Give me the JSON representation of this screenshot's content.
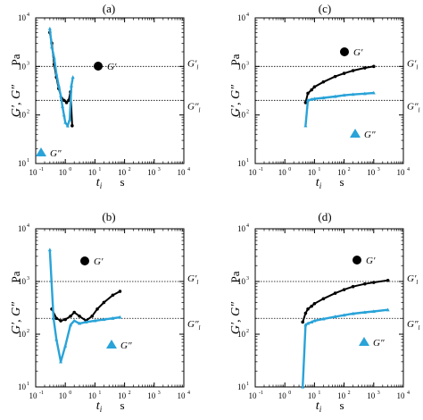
{
  "colors": {
    "g_prime": "#000000",
    "g_double_prime": "#29a3d8",
    "ref_line": "#000000",
    "axis": "#000000"
  },
  "chart_data": [
    {
      "panel": "(a)",
      "type": "scatter",
      "xscale": "log",
      "yscale": "log",
      "xlim": [
        0.1,
        10000
      ],
      "ylim": [
        10,
        10000
      ],
      "xticks": [
        "10",
        "10",
        "10",
        "10",
        "10",
        "10"
      ],
      "xtick_exponents": [
        "-1",
        "0",
        "1",
        "2",
        "3",
        "4"
      ],
      "yticks": [
        "10",
        "10",
        "10",
        "10"
      ],
      "ytick_exponents": [
        "1",
        "2",
        "3",
        "4"
      ],
      "xlabel": "t",
      "xlabel_sub": "i",
      "xunit": "s",
      "ylabel": "G′, G″",
      "yunit": "Pa",
      "ref_lines": [
        {
          "label": "G′",
          "label_sub": "l",
          "y": 1000
        },
        {
          "label": "G″",
          "label_sub": "l",
          "y": 200
        }
      ],
      "series": [
        {
          "name": "G′",
          "marker": "circle",
          "x": [
            0.3,
            0.35,
            0.42,
            0.5,
            0.6,
            0.75,
            0.9,
            1.1,
            1.3,
            1.5,
            1.7
          ],
          "y": [
            5000,
            3000,
            1100,
            600,
            350,
            220,
            200,
            180,
            200,
            300,
            60
          ]
        },
        {
          "name": "G″",
          "marker": "triangle",
          "x": [
            0.3,
            0.35,
            0.42,
            0.5,
            0.6,
            0.7,
            0.8,
            0.9,
            1.0,
            1.2,
            1.4,
            1.6,
            1.8
          ],
          "y": [
            6000,
            2500,
            1500,
            700,
            400,
            250,
            150,
            100,
            70,
            60,
            80,
            400,
            600
          ]
        }
      ]
    },
    {
      "panel": "(b)",
      "type": "line",
      "xscale": "log",
      "yscale": "log",
      "xlim": [
        0.1,
        10000
      ],
      "ylim": [
        10,
        10000
      ],
      "xticks": [
        "10",
        "10",
        "10",
        "10",
        "10",
        "10"
      ],
      "xtick_exponents": [
        "-1",
        "0",
        "1",
        "2",
        "3",
        "4"
      ],
      "yticks": [
        "10",
        "10",
        "10",
        "10"
      ],
      "ytick_exponents": [
        "1",
        "2",
        "3",
        "4"
      ],
      "xlabel": "t",
      "xlabel_sub": "i",
      "xunit": "s",
      "ylabel": "G′, G″",
      "yunit": "Pa",
      "ref_lines": [
        {
          "label": "G′",
          "label_sub": "l",
          "y": 1000
        },
        {
          "label": "G″",
          "label_sub": "l",
          "y": 200
        }
      ],
      "series": [
        {
          "name": "G′",
          "marker": "circle",
          "x": [
            0.35,
            0.5,
            0.7,
            1.0,
            1.5,
            2.0,
            3.0,
            5.0,
            8.0,
            12,
            20,
            40,
            70
          ],
          "y": [
            300,
            200,
            180,
            190,
            220,
            260,
            220,
            180,
            220,
            300,
            400,
            550,
            650
          ]
        },
        {
          "name": "G″",
          "marker": "triangle",
          "x": [
            0.3,
            0.4,
            0.5,
            0.7,
            1.0,
            1.5,
            2.0,
            3.0,
            5.0,
            10,
            20,
            40,
            70
          ],
          "y": [
            4000,
            200,
            80,
            30,
            60,
            150,
            180,
            160,
            170,
            180,
            190,
            200,
            210
          ]
        }
      ]
    },
    {
      "panel": "(c)",
      "type": "line",
      "xscale": "log",
      "yscale": "log",
      "xlim": [
        0.1,
        10000
      ],
      "ylim": [
        10,
        10000
      ],
      "xticks": [
        "10",
        "10",
        "10",
        "10",
        "10",
        "10"
      ],
      "xtick_exponents": [
        "-1",
        "0",
        "1",
        "2",
        "3",
        "4"
      ],
      "yticks": [
        "10",
        "10",
        "10",
        "10"
      ],
      "ytick_exponents": [
        "1",
        "2",
        "3",
        "4"
      ],
      "xlabel": "t",
      "xlabel_sub": "i",
      "xunit": "s",
      "ylabel": "G′, G″",
      "yunit": "Pa",
      "ref_lines": [
        {
          "label": "G′",
          "label_sub": "l",
          "y": 1000
        },
        {
          "label": "G″",
          "label_sub": "l",
          "y": 200
        }
      ],
      "series": [
        {
          "name": "G′",
          "marker": "circle",
          "x": [
            5,
            6,
            8,
            10,
            20,
            50,
            100,
            200,
            500,
            1000
          ],
          "y": [
            180,
            280,
            330,
            380,
            480,
            620,
            720,
            820,
            930,
            1000
          ]
        },
        {
          "name": "G″",
          "marker": "triangle",
          "x": [
            5,
            6,
            8,
            10,
            20,
            50,
            100,
            200,
            500,
            1000
          ],
          "y": [
            60,
            200,
            210,
            215,
            225,
            240,
            255,
            265,
            275,
            285
          ]
        }
      ]
    },
    {
      "panel": "(d)",
      "type": "line",
      "xscale": "log",
      "yscale": "log",
      "xlim": [
        0.1,
        10000
      ],
      "ylim": [
        10,
        10000
      ],
      "xticks": [
        "10",
        "10",
        "10",
        "10",
        "10",
        "10"
      ],
      "xtick_exponents": [
        "-1",
        "0",
        "1",
        "2",
        "3",
        "4"
      ],
      "yticks": [
        "10",
        "10",
        "10",
        "10"
      ],
      "ytick_exponents": [
        "1",
        "2",
        "3",
        "4"
      ],
      "xlabel": "t",
      "xlabel_sub": "i",
      "xunit": "s",
      "ylabel": "G′, G″",
      "yunit": "Pa",
      "ref_lines": [
        {
          "label": "G′",
          "label_sub": "l",
          "y": 1000
        },
        {
          "label": "G″",
          "label_sub": "l",
          "y": 200
        }
      ],
      "series": [
        {
          "name": "G′",
          "marker": "circle",
          "x": [
            4,
            5,
            6,
            8,
            10,
            20,
            50,
            100,
            200,
            500,
            1000,
            3000
          ],
          "y": [
            170,
            250,
            300,
            340,
            380,
            470,
            600,
            700,
            800,
            900,
            960,
            1050
          ]
        },
        {
          "name": "G″",
          "marker": "triangle",
          "x": [
            4,
            5,
            6,
            8,
            10,
            20,
            50,
            100,
            200,
            500,
            1000,
            3000
          ],
          "y": [
            10,
            150,
            160,
            170,
            180,
            195,
            215,
            230,
            245,
            260,
            270,
            290
          ]
        }
      ]
    }
  ]
}
